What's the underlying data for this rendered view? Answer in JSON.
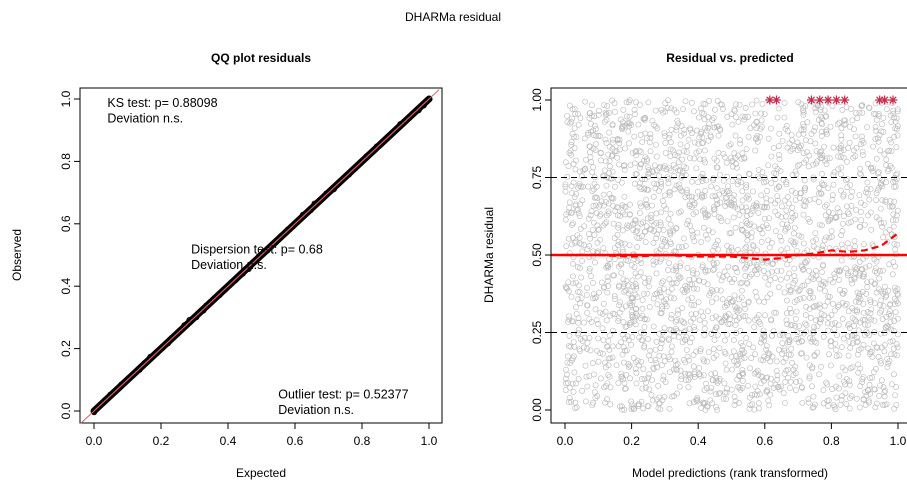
{
  "figure": {
    "title": "DHARMa residual"
  },
  "chart_data": [
    {
      "type": "scatter",
      "title": "QQ plot residuals",
      "xlabel": "Expected",
      "ylabel": "Observed",
      "xlim": [
        0,
        1
      ],
      "ylim": [
        0,
        1
      ],
      "x_ticks": [
        "0.0",
        "0.2",
        "0.4",
        "0.6",
        "0.8",
        "1.0"
      ],
      "y_ticks": [
        "0.0",
        "0.2",
        "0.4",
        "0.6",
        "0.8",
        "1.0"
      ],
      "x_tick_values": [
        0,
        0.2,
        0.4,
        0.6,
        0.8,
        1.0
      ],
      "y_tick_values": [
        0,
        0.2,
        0.4,
        0.6,
        0.8,
        1.0
      ],
      "reference_line": {
        "from": [
          0,
          0
        ],
        "to": [
          1,
          1
        ],
        "color": "#e05a6a"
      },
      "points_color": "#000000",
      "annotations": [
        {
          "text": "KS test: p= 0.88098",
          "x": 0.04,
          "y": 0.975
        },
        {
          "text": "Deviation  n.s.",
          "x": 0.04,
          "y": 0.925
        },
        {
          "text": "Dispersion test: p= 0.68",
          "x": 0.29,
          "y": 0.505
        },
        {
          "text": "Deviation  n.s.",
          "x": 0.29,
          "y": 0.455
        },
        {
          "text": "Outlier test: p= 0.52377",
          "x": 0.55,
          "y": 0.04
        },
        {
          "text": "Deviation  n.s.",
          "x": 0.55,
          "y": -0.01
        }
      ]
    },
    {
      "type": "scatter",
      "title": "Residual vs. predicted",
      "xlabel": "Model predictions (rank transformed)",
      "ylabel": "DHARMa residual",
      "xlim": [
        0,
        1
      ],
      "ylim": [
        0,
        1
      ],
      "x_ticks": [
        "0.0",
        "0.2",
        "0.4",
        "0.6",
        "0.8",
        "1.0"
      ],
      "y_ticks": [
        "0.00",
        "0.25",
        "0.50",
        "0.75",
        "1.00"
      ],
      "x_tick_values": [
        0,
        0.2,
        0.4,
        0.6,
        0.8,
        1.0
      ],
      "y_tick_values": [
        0,
        0.25,
        0.5,
        0.75,
        1.0
      ],
      "points_color": "#b8b8b8",
      "point_count": 2500,
      "quantile_reference_lines": [
        0.25,
        0.5,
        0.75
      ],
      "median_line": {
        "y": 0.5,
        "color": "#ff0000"
      },
      "quantile_fit": {
        "color": "#ff0000",
        "x": [
          0.0,
          0.1,
          0.2,
          0.3,
          0.4,
          0.5,
          0.55,
          0.6,
          0.65,
          0.7,
          0.75,
          0.8,
          0.85,
          0.9,
          0.95,
          1.0
        ],
        "y": [
          0.5,
          0.5,
          0.495,
          0.5,
          0.495,
          0.495,
          0.49,
          0.485,
          0.49,
          0.5,
          0.505,
          0.515,
          0.51,
          0.515,
          0.53,
          0.57
        ]
      },
      "outliers": {
        "color": "#c8284a",
        "x": [
          0.615,
          0.635,
          0.74,
          0.765,
          0.79,
          0.815,
          0.84,
          0.945,
          0.96,
          0.985
        ],
        "y": [
          1.0,
          1.0,
          1.0,
          1.0,
          1.0,
          1.0,
          1.0,
          1.0,
          1.0,
          1.0
        ]
      }
    }
  ]
}
